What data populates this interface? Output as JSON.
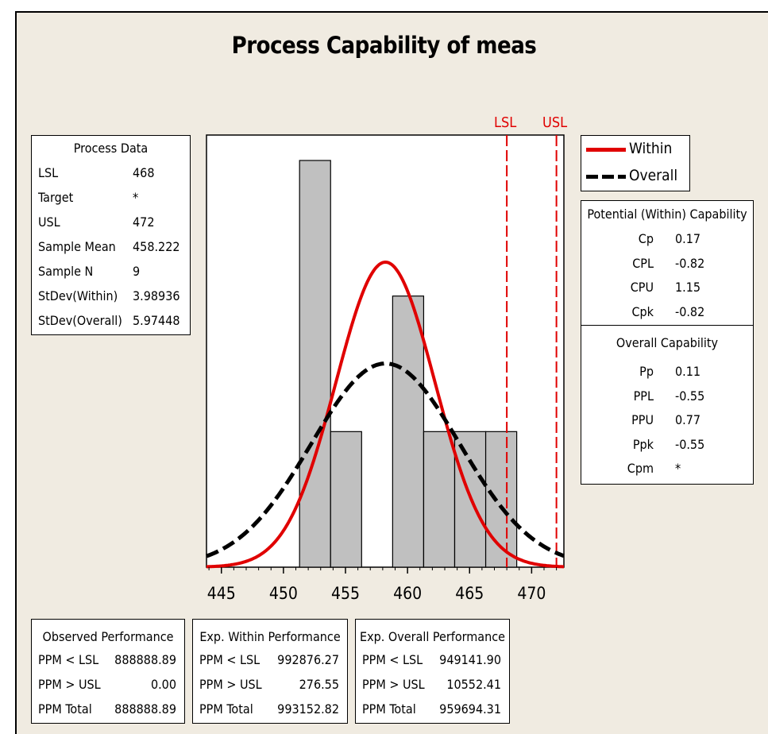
{
  "title": "Process Capability of meas",
  "process_data": {
    "header": "Process Data",
    "rows": [
      {
        "label": "LSL",
        "value": "468"
      },
      {
        "label": "Target",
        "value": "*"
      },
      {
        "label": "USL",
        "value": "472"
      },
      {
        "label": "Sample Mean",
        "value": "458.222"
      },
      {
        "label": "Sample N",
        "value": "9"
      },
      {
        "label": "StDev(Within)",
        "value": "3.98936"
      },
      {
        "label": "StDev(Overall)",
        "value": "5.97448"
      }
    ]
  },
  "legend": {
    "within": "Within",
    "overall": "Overall"
  },
  "capability": {
    "potential_header": "Potential (Within) Capability",
    "potential_rows": [
      {
        "label": "Cp",
        "value": "0.17"
      },
      {
        "label": "CPL",
        "value": "-0.82"
      },
      {
        "label": "CPU",
        "value": "1.15"
      },
      {
        "label": "Cpk",
        "value": "-0.82"
      }
    ],
    "overall_header": "Overall Capability",
    "overall_rows": [
      {
        "label": "Pp",
        "value": "0.11"
      },
      {
        "label": "PPL",
        "value": "-0.55"
      },
      {
        "label": "PPU",
        "value": "0.77"
      },
      {
        "label": "Ppk",
        "value": "-0.55"
      },
      {
        "label": "Cpm",
        "value": "*"
      }
    ]
  },
  "observed": {
    "header": "Observed Performance",
    "rows": [
      {
        "label": "PPM < LSL",
        "value": "888888.89"
      },
      {
        "label": "PPM > USL",
        "value": "0.00"
      },
      {
        "label": "PPM Total",
        "value": "888888.89"
      }
    ]
  },
  "exp_within": {
    "header": "Exp. Within Performance",
    "rows": [
      {
        "label": "PPM < LSL",
        "value": "992876.27"
      },
      {
        "label": "PPM > USL",
        "value": "276.55"
      },
      {
        "label": "PPM Total",
        "value": "993152.82"
      }
    ]
  },
  "exp_overall": {
    "header": "Exp. Overall Performance",
    "rows": [
      {
        "label": "PPM < LSL",
        "value": "949141.90"
      },
      {
        "label": "PPM > USL",
        "value": "10552.41"
      },
      {
        "label": "PPM Total",
        "value": "959694.31"
      }
    ]
  },
  "chart_data": {
    "type": "histogram",
    "title": "Process Capability of meas",
    "xlim": [
      443.8,
      472.6
    ],
    "x_ticks": [
      445,
      450,
      455,
      460,
      465,
      470
    ],
    "bins": [
      {
        "start": 451.3,
        "end": 453.8,
        "count": 3
      },
      {
        "start": 453.8,
        "end": 456.3,
        "count": 1
      },
      {
        "start": 458.8,
        "end": 461.3,
        "count": 2
      },
      {
        "start": 461.3,
        "end": 463.8,
        "count": 1
      },
      {
        "start": 463.8,
        "end": 466.3,
        "count": 1
      },
      {
        "start": 466.3,
        "end": 468.8,
        "count": 1
      }
    ],
    "spec_limits": [
      {
        "name": "LSL",
        "value": 468
      },
      {
        "name": "USL",
        "value": 472
      }
    ],
    "curves": [
      {
        "name": "Within",
        "mean": 458.222,
        "sd": 3.98936,
        "color": "#e00000",
        "style": "solid"
      },
      {
        "name": "Overall",
        "mean": 458.222,
        "sd": 5.97448,
        "color": "#000000",
        "style": "dashed"
      }
    ],
    "bar_color": "#c0c0c0"
  }
}
